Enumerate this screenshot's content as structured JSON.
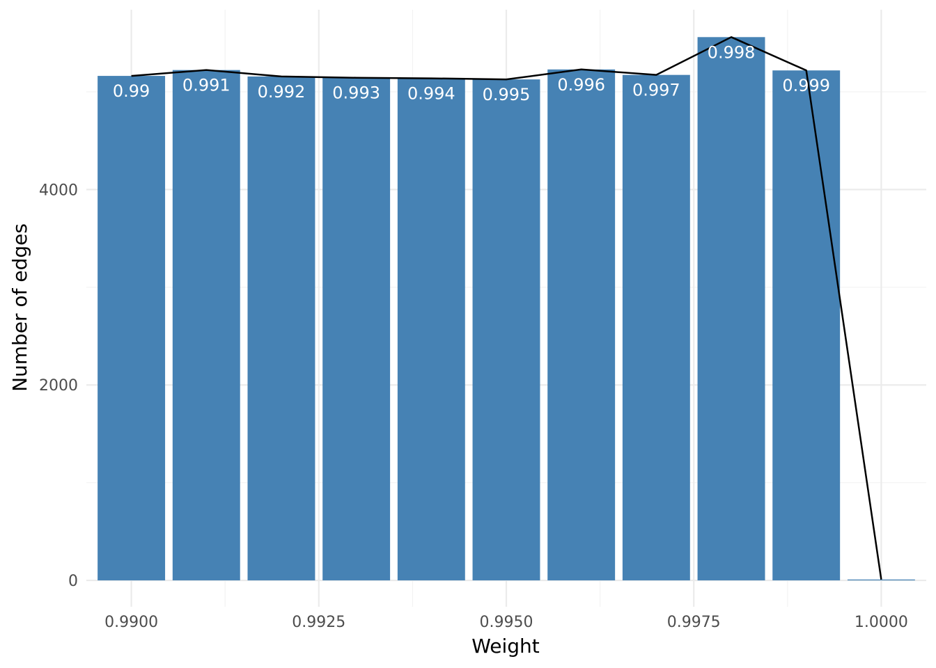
{
  "chart_data": {
    "type": "bar",
    "title": "",
    "xlabel": "Weight",
    "ylabel": "Number of edges",
    "x": [
      0.99,
      0.991,
      0.992,
      0.993,
      0.994,
      0.995,
      0.996,
      0.997,
      0.998,
      0.999,
      1.0
    ],
    "values": [
      5163,
      5223,
      5157,
      5144,
      5138,
      5127,
      5229,
      5173,
      5560,
      5219,
      9
    ],
    "bar_labels": [
      "0.99",
      "0.991",
      "0.992",
      "0.993",
      "0.994",
      "0.995",
      "0.996",
      "0.997",
      "0.998",
      "0.999",
      ""
    ],
    "line_values": [
      5163,
      5223,
      5157,
      5144,
      5138,
      5127,
      5229,
      5173,
      5560,
      5219,
      9
    ],
    "bar_color": "#4682B4",
    "line_color": "#000000",
    "xlim": [
      0.9894,
      1.0006
    ],
    "ylim": [
      -270,
      5840
    ],
    "xticks": [
      0.99,
      0.9925,
      0.995,
      0.9975,
      1.0
    ],
    "xtick_labels": [
      "0.9900",
      "0.9925",
      "0.9950",
      "0.9975",
      "1.0000"
    ],
    "yticks": [
      0,
      2000,
      4000
    ],
    "ytick_labels": [
      "0",
      "2000",
      "4000"
    ],
    "grid": true,
    "legend": "none"
  }
}
